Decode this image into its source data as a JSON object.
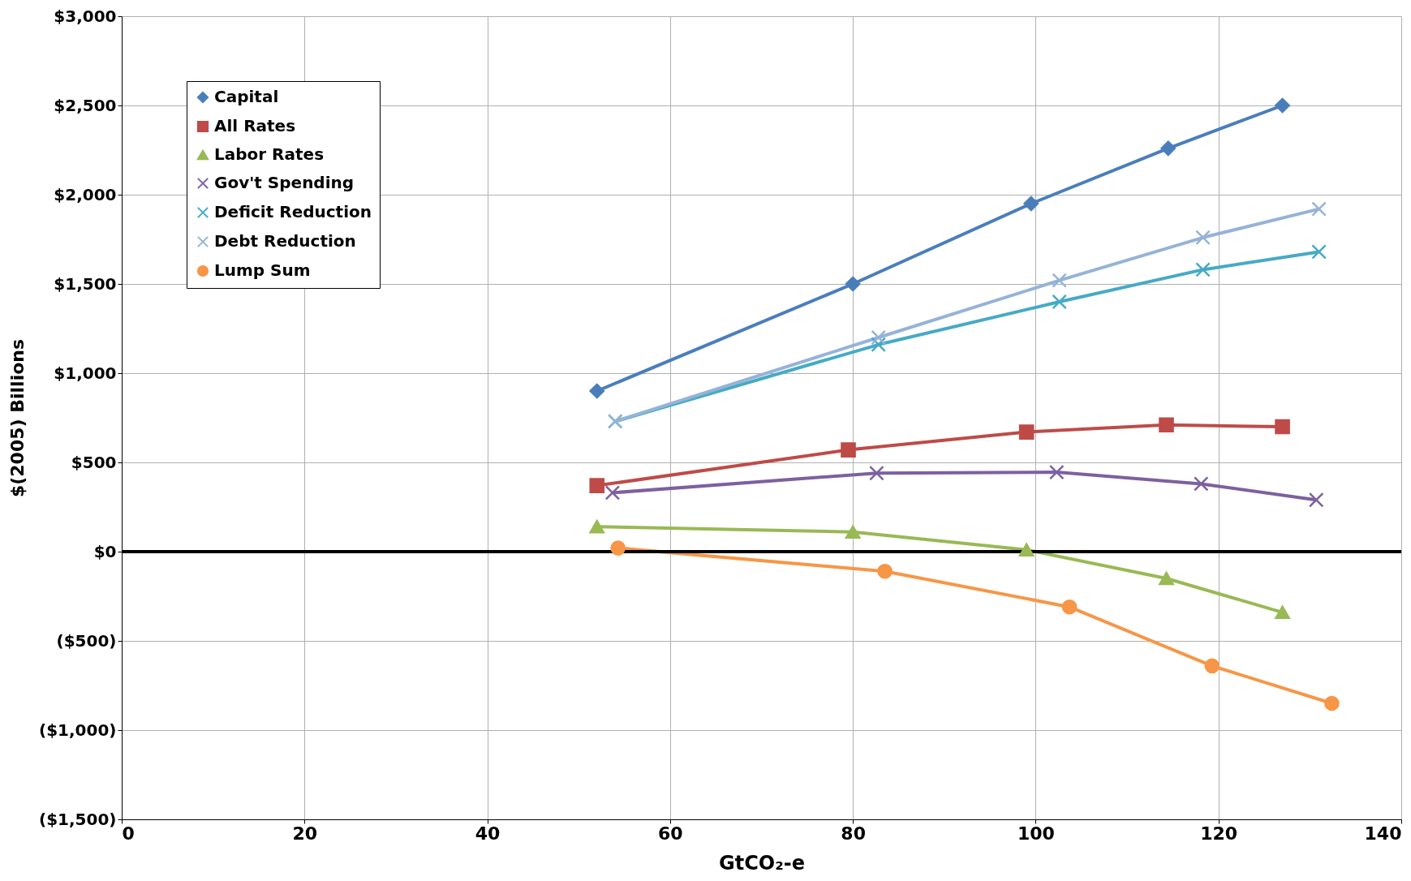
{
  "chart_data": {
    "type": "line",
    "xlabel": "GtCO₂-e",
    "ylabel": "$(2005) Billions",
    "xlim": [
      0,
      140
    ],
    "xticks": [
      0,
      20,
      40,
      60,
      80,
      100,
      120,
      140
    ],
    "ylim": [
      -1500,
      3000
    ],
    "yticks": [
      {
        "value": -1500,
        "label": "($1,500)"
      },
      {
        "value": -1000,
        "label": "($1,000)"
      },
      {
        "value": -500,
        "label": "($500)"
      },
      {
        "value": 0,
        "label": "$0"
      },
      {
        "value": 500,
        "label": "$500"
      },
      {
        "value": 1000,
        "label": "$1,000"
      },
      {
        "value": 1500,
        "label": "$1,500"
      },
      {
        "value": 2000,
        "label": "$2,000"
      },
      {
        "value": 2500,
        "label": "$2,500"
      },
      {
        "value": 3000,
        "label": "$3,000"
      }
    ],
    "grid": true,
    "legend": "top left",
    "ref_lines": [
      {
        "axis": "y",
        "value": 0,
        "color": "#000000"
      }
    ],
    "series": [
      {
        "name": "Capital",
        "color": "#4a7ebb",
        "marker": "diamond",
        "x": [
          52,
          80,
          99.5,
          114.5,
          127
        ],
        "values": [
          900,
          1500,
          1950,
          2260,
          2500
        ]
      },
      {
        "name": "All Rates",
        "color": "#be4b48",
        "marker": "square",
        "x": [
          52,
          79.5,
          99,
          114.3,
          127
        ],
        "values": [
          370,
          570,
          670,
          710,
          700
        ]
      },
      {
        "name": "Labor Rates",
        "color": "#98b954",
        "marker": "triangle",
        "x": [
          52,
          80,
          99,
          114.3,
          127
        ],
        "values": [
          140,
          110,
          10,
          -150,
          -340
        ]
      },
      {
        "name": "Gov't Spending",
        "color": "#7d60a0",
        "marker": "cross",
        "x": [
          53.7,
          82.6,
          102.3,
          118.1,
          130.7
        ],
        "values": [
          330,
          440,
          445,
          380,
          290
        ]
      },
      {
        "name": "Deficit Reduction",
        "color": "#46aac5",
        "marker": "cross",
        "x": [
          54,
          82.8,
          102.6,
          118.3,
          131
        ],
        "values": [
          730,
          1160,
          1400,
          1580,
          1680
        ]
      },
      {
        "name": "Debt Reduction",
        "color": "#95b3d7",
        "marker": "cross",
        "x": [
          54,
          82.8,
          102.6,
          118.3,
          131
        ],
        "values": [
          730,
          1200,
          1520,
          1760,
          1920
        ]
      },
      {
        "name": "Lump Sum",
        "color": "#f79646",
        "marker": "circle",
        "x": [
          54.3,
          83.5,
          103.7,
          119.3,
          132.4
        ],
        "values": [
          20,
          -110,
          -310,
          -640,
          -850
        ]
      }
    ]
  }
}
